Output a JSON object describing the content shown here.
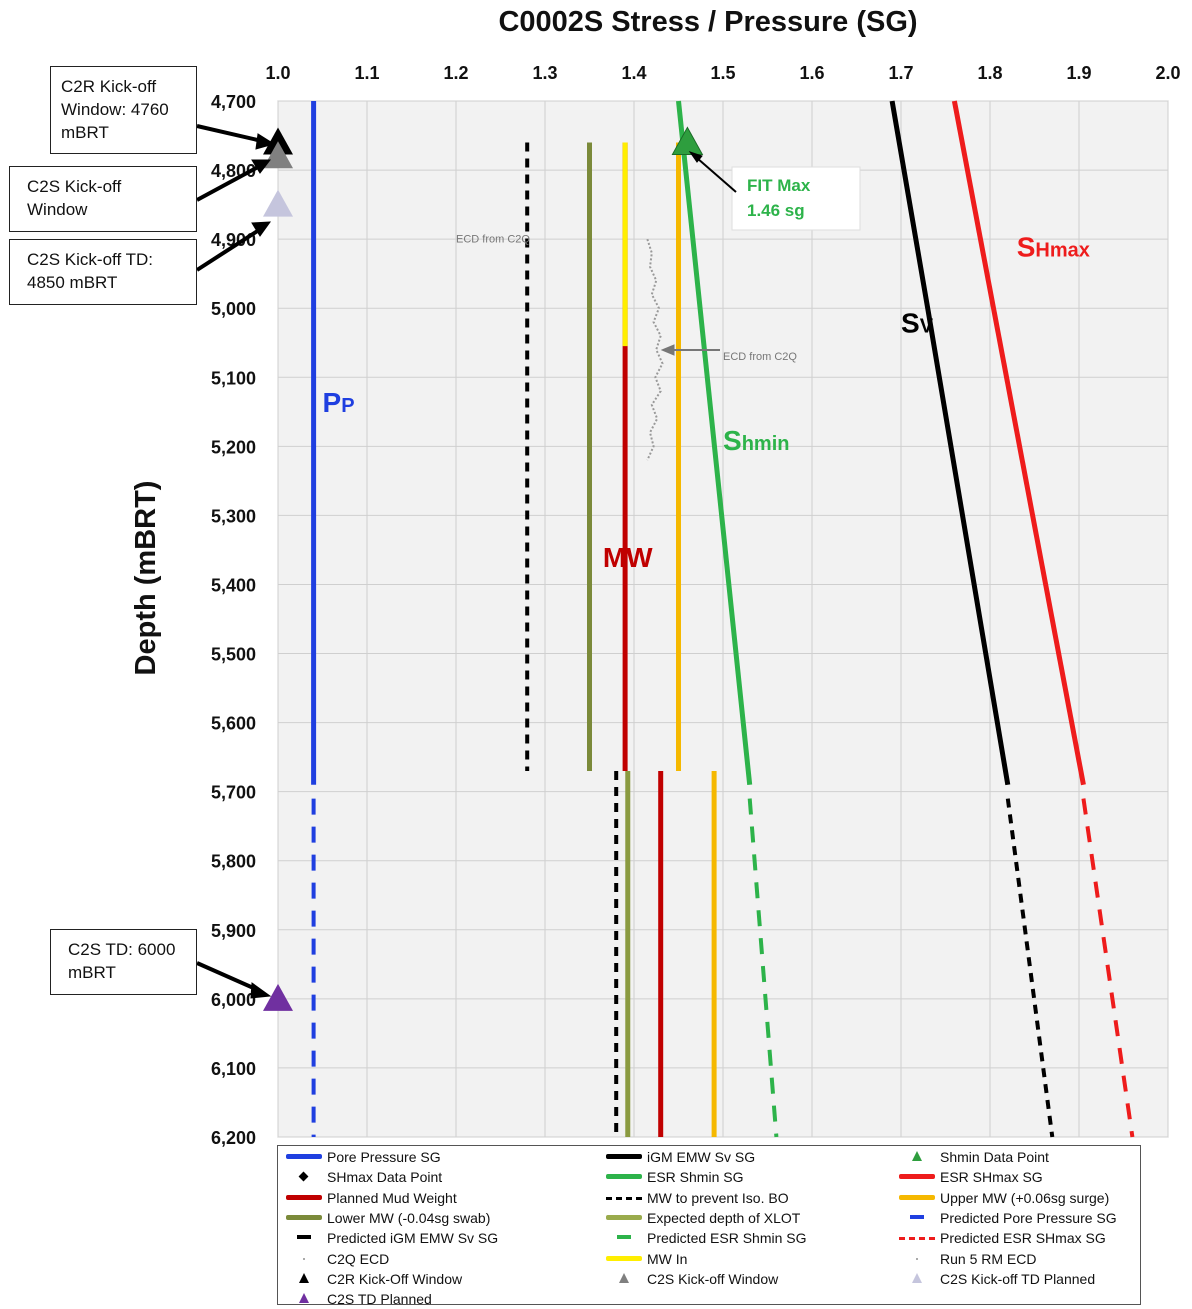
{
  "chart_data": {
    "type": "line",
    "title": "C0002S Stress / Pressure (SG)",
    "ylabel": "Depth (mBRT)",
    "xlabel": "",
    "x_axis_position": "top",
    "xlim": [
      1.0,
      2.0
    ],
    "ylim": [
      4700,
      6200
    ],
    "y_inverted": true,
    "x_ticks": [
      "1.0",
      "1.1",
      "1.2",
      "1.3",
      "1.4",
      "1.5",
      "1.6",
      "1.7",
      "1.8",
      "1.9",
      "2.0"
    ],
    "y_ticks": [
      "4,700",
      "4,800",
      "4,900",
      "5,000",
      "5,100",
      "5,200",
      "5,300",
      "5,400",
      "5,500",
      "5,600",
      "5,700",
      "5,800",
      "5,900",
      "6,000",
      "6,100",
      "6,200"
    ],
    "grid": true,
    "legend_position": "bottom",
    "series": [
      {
        "name": "Pore Pressure SG",
        "style": "solid",
        "color": "#1f3fe0",
        "points": [
          [
            1.04,
            4700
          ],
          [
            1.04,
            5690
          ]
        ]
      },
      {
        "name": "iGM EMW Sv SG",
        "style": "solid",
        "color": "#000000",
        "points": [
          [
            1.69,
            4700
          ],
          [
            1.73,
            5000
          ],
          [
            1.82,
            5690
          ]
        ]
      },
      {
        "name": "ESR Shmin SG",
        "style": "solid",
        "color": "#2db34a",
        "points": [
          [
            1.45,
            4700
          ],
          [
            1.53,
            5690
          ]
        ]
      },
      {
        "name": "ESR SHmax SG",
        "style": "solid",
        "color": "#ee1c1c",
        "points": [
          [
            1.76,
            4700
          ],
          [
            1.905,
            5690
          ]
        ]
      },
      {
        "name": "Planned Mud Weight",
        "style": "solid",
        "color": "#c00000",
        "points": [
          [
            1.39,
            4760
          ],
          [
            1.39,
            5670
          ]
        ]
      },
      {
        "name": "MW to prevent Iso. BO",
        "style": "dashed",
        "color": "#000000",
        "points": [
          [
            1.28,
            4760
          ],
          [
            1.28,
            5670
          ]
        ]
      },
      {
        "name": "Upper MW (+0.06sg surge)",
        "style": "solid",
        "color": "#f5b800",
        "points": [
          [
            1.45,
            4760
          ],
          [
            1.45,
            5670
          ]
        ]
      },
      {
        "name": "Lower MW (-0.04sg swab)",
        "style": "solid",
        "color": "#7b8a3a",
        "points": [
          [
            1.35,
            4760
          ],
          [
            1.35,
            5670
          ]
        ]
      },
      {
        "name": "Expected depth of XLOT",
        "style": "solid",
        "color": "#8a9a40",
        "points": [
          [
            1.393,
            5670
          ],
          [
            1.393,
            6200
          ]
        ]
      },
      {
        "name": "Predicted Pore Pressure SG",
        "style": "dashed",
        "color": "#1f3fe0",
        "points": [
          [
            1.04,
            5710
          ],
          [
            1.04,
            6200
          ]
        ]
      },
      {
        "name": "Predicted iGM EMW Sv SG",
        "style": "dashed",
        "color": "#000000",
        "points": [
          [
            1.82,
            5710
          ],
          [
            1.87,
            6200
          ]
        ]
      },
      {
        "name": "Predicted ESR Shmin SG",
        "style": "dashed",
        "color": "#2db34a",
        "points": [
          [
            1.53,
            5710
          ],
          [
            1.56,
            6200
          ]
        ]
      },
      {
        "name": "Predicted ESR SHmax SG",
        "style": "dashed",
        "color": "#ee1c1c",
        "points": [
          [
            1.905,
            5710
          ],
          [
            1.96,
            6200
          ]
        ]
      },
      {
        "name": "MW In",
        "style": "solid",
        "color": "#ffee00",
        "points": [
          [
            1.39,
            4760
          ],
          [
            1.39,
            5055
          ]
        ]
      },
      {
        "name": "",
        "style": "dashed",
        "color": "#000000",
        "points": [
          [
            1.38,
            5670
          ],
          [
            1.38,
            6200
          ]
        ]
      },
      {
        "name": "",
        "style": "solid",
        "color": "#c00000",
        "points": [
          [
            1.43,
            5670
          ],
          [
            1.43,
            6200
          ]
        ]
      },
      {
        "name": "",
        "style": "solid",
        "color": "#f5b800",
        "points": [
          [
            1.49,
            5670
          ],
          [
            1.49,
            6200
          ]
        ]
      }
    ],
    "ecd_trace": {
      "name": "Run 5 RM ECD",
      "color": "#999999",
      "points": [
        [
          1.415,
          4900
        ],
        [
          1.42,
          4920
        ],
        [
          1.418,
          4940
        ],
        [
          1.425,
          4960
        ],
        [
          1.42,
          4980
        ],
        [
          1.428,
          5000
        ],
        [
          1.422,
          5020
        ],
        [
          1.43,
          5040
        ],
        [
          1.425,
          5060
        ],
        [
          1.432,
          5080
        ],
        [
          1.424,
          5100
        ],
        [
          1.43,
          5120
        ],
        [
          1.42,
          5140
        ],
        [
          1.426,
          5160
        ],
        [
          1.418,
          5180
        ],
        [
          1.422,
          5200
        ],
        [
          1.415,
          5220
        ]
      ]
    },
    "markers": [
      {
        "name": "Shmin Data Point",
        "shape": "triangle",
        "color": "#2e9e3e",
        "x": 1.46,
        "y": 4760
      },
      {
        "name": "C2R Kick-Off Window",
        "shape": "triangle",
        "color": "#000000",
        "x": 1.0,
        "y": 4760
      },
      {
        "name": "C2S Kick-off Window",
        "shape": "triangle",
        "color": "#808080",
        "x": 1.0,
        "y": 4780
      },
      {
        "name": "C2S Kick-off TD Planned",
        "shape": "triangle",
        "color": "#c5c5dd",
        "x": 1.0,
        "y": 4850
      },
      {
        "name": "C2S TD Planned",
        "shape": "triangle",
        "color": "#7030a0",
        "x": 1.0,
        "y": 6000
      }
    ],
    "annotations": [
      {
        "text": "P",
        "sub": "P",
        "color": "#1f3fe0",
        "x": 1.05,
        "y": 5150
      },
      {
        "text": "S",
        "sub": "V",
        "color": "#000000",
        "x": 1.7,
        "y": 5035
      },
      {
        "text": "S",
        "sub": "Hmax",
        "color": "#ee1c1c",
        "x": 1.83,
        "y": 4925
      },
      {
        "text": "S",
        "sub": "hmin",
        "color": "#2db34a",
        "x": 1.5,
        "y": 5205
      },
      {
        "text": "MW",
        "sub": "",
        "color": "#c00000",
        "x": 1.365,
        "y": 5375
      },
      {
        "text": "ECD from C2Q",
        "sub": "",
        "color": "#777777",
        "x": 1.2,
        "y": 4905
      },
      {
        "text": "ECD from C2Q",
        "sub": "",
        "color": "#777777",
        "x": 1.5,
        "y": 5075
      }
    ],
    "fit_box": {
      "line1": "FIT Max",
      "line2": "1.46 sg",
      "color": "#2db34a"
    }
  },
  "callouts": {
    "c2r_kickoff": "C2R Kick-off Window: 4760 mBRT",
    "c2s_kickoff": "C2S Kick-off Window",
    "c2s_kickoff_td": "C2S Kick-off TD: 4850 mBRT",
    "c2s_td": "C2S TD: 6000 mBRT"
  },
  "legend": {
    "items": [
      {
        "label": "Pore Pressure SG",
        "kind": "line",
        "color": "#1f3fe0"
      },
      {
        "label": "iGM EMW Sv SG",
        "kind": "line",
        "color": "#000000"
      },
      {
        "label": "Shmin Data Point",
        "kind": "triangle",
        "color": "#2e9e3e"
      },
      {
        "label": "SHmax Data Point",
        "kind": "diamond",
        "color": "#000000"
      },
      {
        "label": "ESR Shmin SG",
        "kind": "line",
        "color": "#2db34a"
      },
      {
        "label": "ESR SHmax SG",
        "kind": "line",
        "color": "#ee1c1c"
      },
      {
        "label": "Planned Mud Weight",
        "kind": "line",
        "color": "#c00000"
      },
      {
        "label": "MW to prevent Iso. BO",
        "kind": "dashline",
        "color": "#000000"
      },
      {
        "label": "Upper MW (+0.06sg surge)",
        "kind": "line",
        "color": "#f5b800"
      },
      {
        "label": "Lower MW (-0.04sg swab)",
        "kind": "line",
        "color": "#7b8a3a"
      },
      {
        "label": "Expected depth of XLOT",
        "kind": "line",
        "color": "#9aab4c"
      },
      {
        "label": "Predicted Pore Pressure SG",
        "kind": "dash",
        "color": "#1f3fe0"
      },
      {
        "label": "Predicted iGM EMW Sv SG",
        "kind": "dash",
        "color": "#000000"
      },
      {
        "label": "Predicted ESR Shmin SG",
        "kind": "dash",
        "color": "#2db34a"
      },
      {
        "label": "Predicted ESR SHmax SG",
        "kind": "dashline",
        "color": "#ee1c1c"
      },
      {
        "label": "C2Q ECD",
        "kind": "dot",
        "color": "#aaaaaa"
      },
      {
        "label": "MW In",
        "kind": "line",
        "color": "#ffee00"
      },
      {
        "label": "Run 5 RM ECD",
        "kind": "dot",
        "color": "#aaaaaa"
      },
      {
        "label": "C2R Kick-Off Window",
        "kind": "triangle",
        "color": "#000000"
      },
      {
        "label": "C2S Kick-off Window",
        "kind": "triangle",
        "color": "#808080"
      },
      {
        "label": "C2S Kick-off TD Planned",
        "kind": "triangle",
        "color": "#c5c5dd"
      },
      {
        "label": "C2S TD Planned",
        "kind": "triangle",
        "color": "#7030a0"
      }
    ]
  }
}
